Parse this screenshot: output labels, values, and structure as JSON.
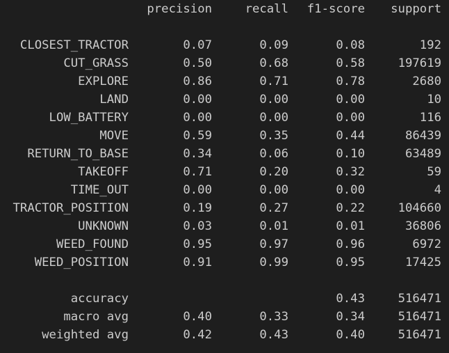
{
  "report": {
    "headers": [
      "precision",
      "recall",
      "f1-score",
      "support"
    ],
    "class_rows": [
      {
        "label": "CLOSEST_TRACTOR",
        "precision": "0.07",
        "recall": "0.09",
        "f1": "0.08",
        "support": "192"
      },
      {
        "label": "CUT_GRASS",
        "precision": "0.50",
        "recall": "0.68",
        "f1": "0.58",
        "support": "197619"
      },
      {
        "label": "EXPLORE",
        "precision": "0.86",
        "recall": "0.71",
        "f1": "0.78",
        "support": "2680"
      },
      {
        "label": "LAND",
        "precision": "0.00",
        "recall": "0.00",
        "f1": "0.00",
        "support": "10"
      },
      {
        "label": "LOW_BATTERY",
        "precision": "0.00",
        "recall": "0.00",
        "f1": "0.00",
        "support": "116"
      },
      {
        "label": "MOVE",
        "precision": "0.59",
        "recall": "0.35",
        "f1": "0.44",
        "support": "86439"
      },
      {
        "label": "RETURN_TO_BASE",
        "precision": "0.34",
        "recall": "0.06",
        "f1": "0.10",
        "support": "63489"
      },
      {
        "label": "TAKEOFF",
        "precision": "0.71",
        "recall": "0.20",
        "f1": "0.32",
        "support": "59"
      },
      {
        "label": "TIME_OUT",
        "precision": "0.00",
        "recall": "0.00",
        "f1": "0.00",
        "support": "4"
      },
      {
        "label": "TRACTOR_POSITION",
        "precision": "0.19",
        "recall": "0.27",
        "f1": "0.22",
        "support": "104660"
      },
      {
        "label": "UNKNOWN",
        "precision": "0.03",
        "recall": "0.01",
        "f1": "0.01",
        "support": "36806"
      },
      {
        "label": "WEED_FOUND",
        "precision": "0.95",
        "recall": "0.97",
        "f1": "0.96",
        "support": "6972"
      },
      {
        "label": "WEED_POSITION",
        "precision": "0.91",
        "recall": "0.99",
        "f1": "0.95",
        "support": "17425"
      }
    ],
    "summary_rows": [
      {
        "label": "accuracy",
        "precision": "",
        "recall": "",
        "f1": "0.43",
        "support": "516471"
      },
      {
        "label": "macro avg",
        "precision": "0.40",
        "recall": "0.33",
        "f1": "0.34",
        "support": "516471"
      },
      {
        "label": "weighted avg",
        "precision": "0.42",
        "recall": "0.43",
        "f1": "0.40",
        "support": "516471"
      }
    ]
  },
  "colors": {
    "background": "#1e1e1e",
    "text": "#cccccc"
  }
}
